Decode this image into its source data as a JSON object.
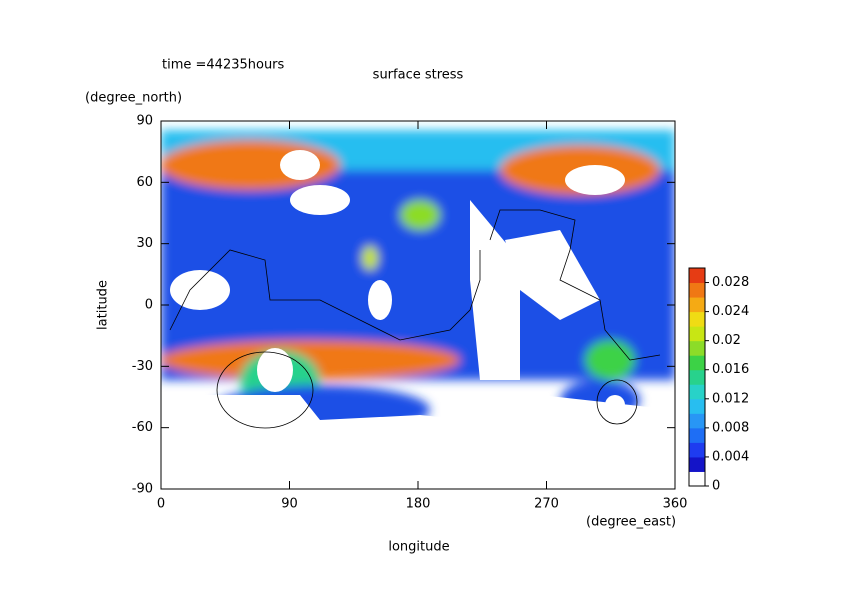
{
  "chart_data": {
    "type": "contour",
    "title": "surface stress",
    "annotation": "time =44235hours",
    "x_label": "longitude",
    "x_unit": "(degree_east)",
    "y_label": "latitude",
    "y_unit": "(degree_north)",
    "xlim": [
      0,
      360
    ],
    "xticks": [
      0,
      90,
      180,
      270,
      360
    ],
    "ylim": [
      -90,
      90
    ],
    "yticks": [
      -90,
      -60,
      -30,
      0,
      30,
      60,
      90
    ],
    "zlim": [
      0,
      0.03
    ],
    "zticks": [
      0,
      0.004,
      0.008,
      0.012,
      0.016,
      0.02,
      0.024,
      0.028
    ],
    "level_colors": [
      "#ffffff",
      "#1414c8",
      "#1e3cf0",
      "#1e6ef5",
      "#2896f5",
      "#28bef0",
      "#28d2c8",
      "#28d28c",
      "#3cd246",
      "#8cdc28",
      "#c8e614",
      "#f0dc14",
      "#f5aa14",
      "#f07814",
      "#e63c14"
    ]
  }
}
